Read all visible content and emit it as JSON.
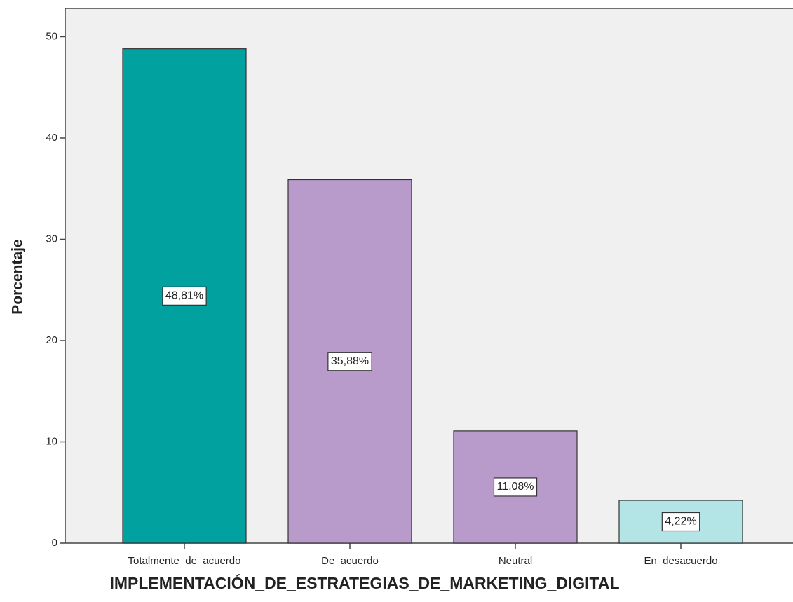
{
  "chart_data": {
    "type": "bar",
    "categories": [
      "Totalmente_de_acuerdo",
      "De_acuerdo",
      "Neutral",
      "En_desacuerdo"
    ],
    "values": [
      48.81,
      35.88,
      11.08,
      4.22
    ],
    "value_labels": [
      "48,81%",
      "35,88%",
      "11,08%",
      "4,22%"
    ],
    "colors": [
      "#00a19f",
      "#b89bca",
      "#b89bca",
      "#b4e5e6"
    ],
    "xlabel": "IMPLEMENTACIÓN_DE_ESTRATEGIAS_DE_MARKETING_DIGITAL",
    "ylabel": "Porcentaje",
    "ylim": [
      0,
      52.8
    ],
    "yticks": [
      0,
      10,
      20,
      30,
      40,
      50
    ]
  }
}
